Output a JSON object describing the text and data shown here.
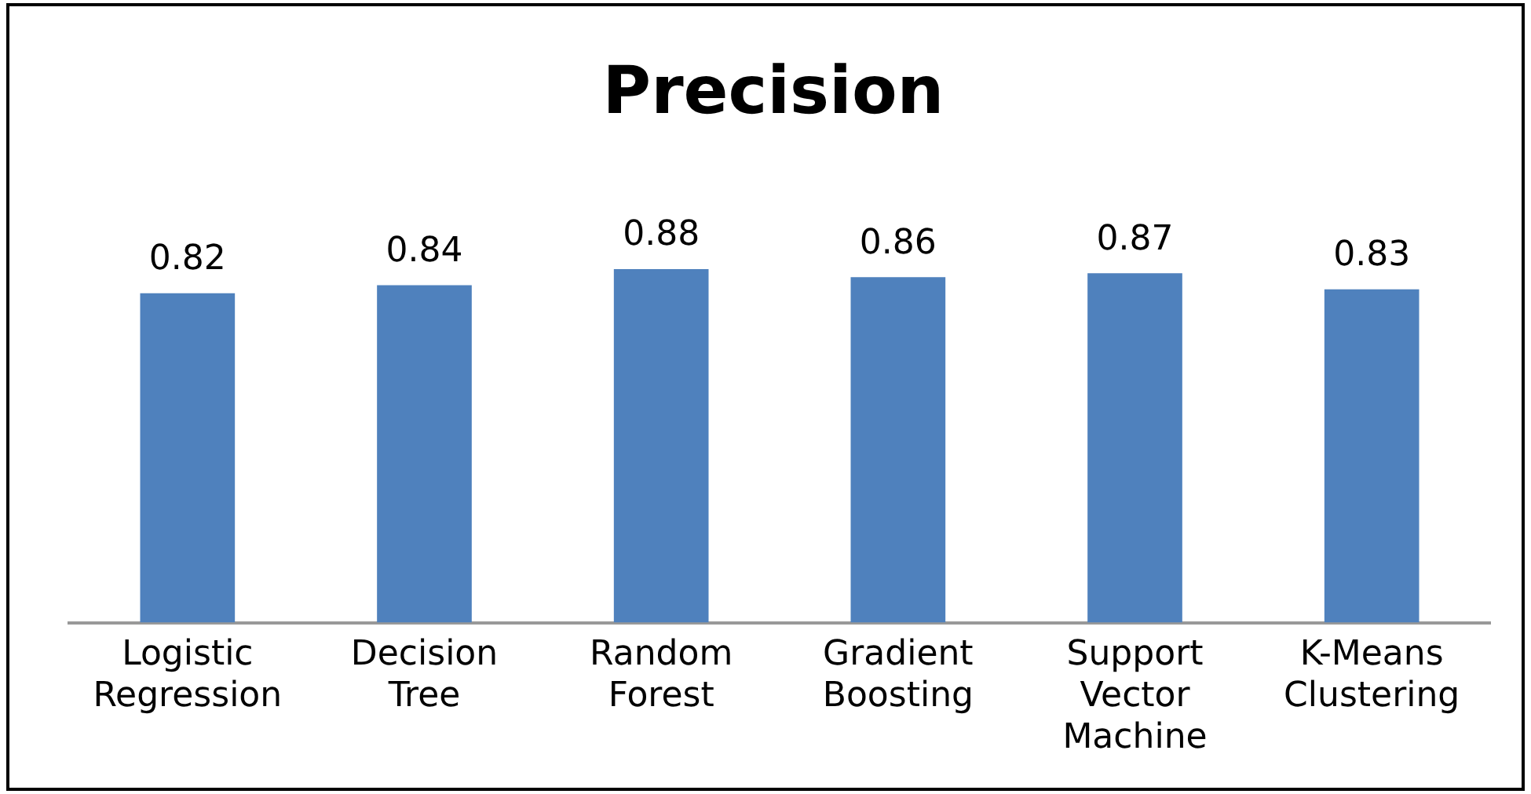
{
  "chart_data": {
    "type": "bar",
    "title": "Precision",
    "categories": [
      "Logistic Regression",
      "Decision Tree",
      "Random Forest",
      "Gradient Boosting",
      "Support Vector Machine",
      "K-Means Clustering"
    ],
    "values": [
      0.82,
      0.84,
      0.88,
      0.86,
      0.87,
      0.83
    ],
    "color": "#4f81bd",
    "data_labels": true,
    "grid": false,
    "legend": false,
    "tick_labels": "x"
  }
}
